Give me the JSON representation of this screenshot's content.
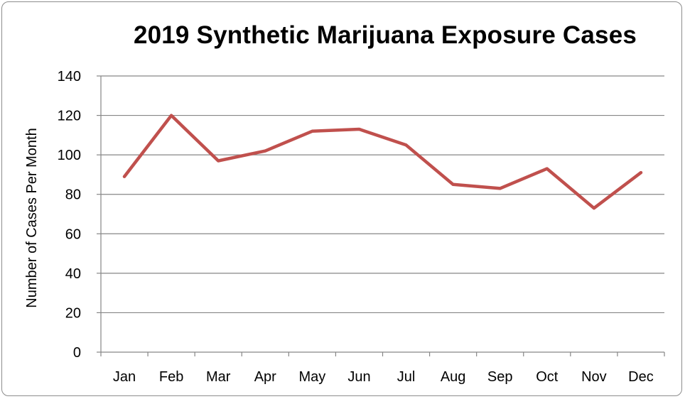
{
  "chart_data": {
    "type": "line",
    "title": "2019 Synthetic Marijuana Exposure Cases",
    "xlabel": "",
    "ylabel": "Number of Cases Per Month",
    "categories": [
      "Jan",
      "Feb",
      "Mar",
      "Apr",
      "May",
      "Jun",
      "Jul",
      "Aug",
      "Sep",
      "Oct",
      "Nov",
      "Dec"
    ],
    "series": [
      {
        "values": [
          89,
          120,
          97,
          102,
          112,
          113,
          105,
          85,
          83,
          93,
          73,
          91
        ]
      }
    ],
    "ylim": [
      0,
      140
    ],
    "yticks": [
      0,
      20,
      40,
      60,
      80,
      100,
      120,
      140
    ],
    "grid": true,
    "legend": "none",
    "line_color": "#c0504d",
    "grid_color": "#868686"
  }
}
